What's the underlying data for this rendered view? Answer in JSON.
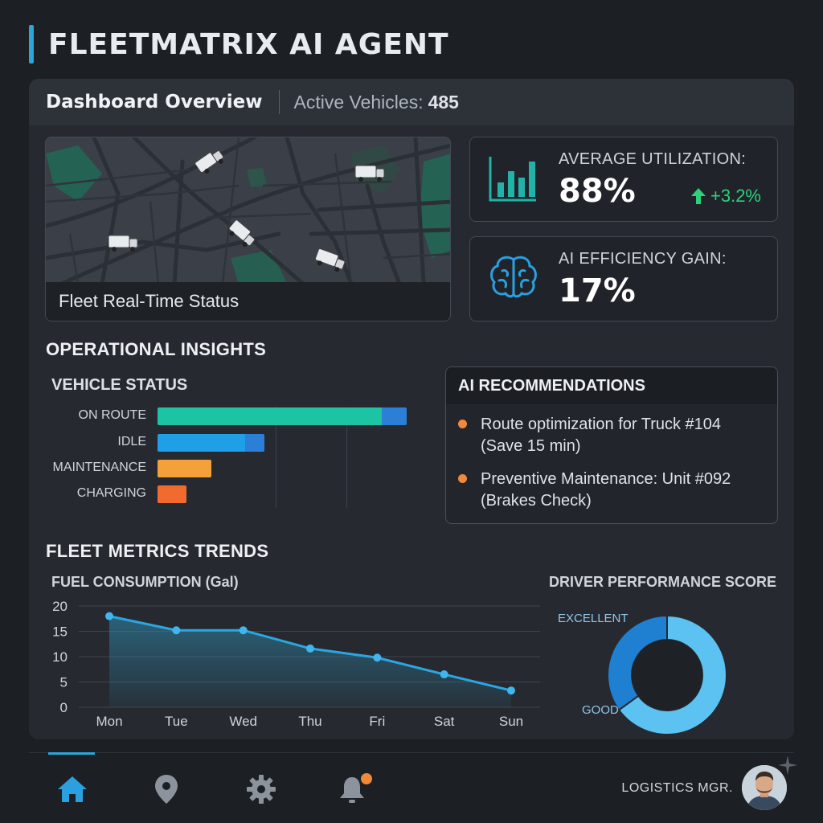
{
  "app": {
    "title": "FLEETMATRIX AI AGENT"
  },
  "dashboard": {
    "title": "Dashboard Overview",
    "active_label": "Active Vehicles:",
    "active_value": "485"
  },
  "map": {
    "caption": "Fleet Real-Time Status"
  },
  "kpis": {
    "utilization": {
      "label": "AVERAGE UTILIZATION:",
      "value": "88%",
      "delta": "+3.2%",
      "icon": "bar-chart-icon"
    },
    "efficiency": {
      "label": "AI EFFICIENCY GAIN:",
      "value": "17%",
      "icon": "brain-icon"
    }
  },
  "insights": {
    "title": "OPERATIONAL INSIGHTS"
  },
  "vehicle_status": {
    "title": "VEHICLE STATUS",
    "colors": {
      "on_route": "#1cc4a3",
      "idle": "#1e9fe6",
      "maintenance": "#f5a13b",
      "charging": "#f26b2e",
      "secondary": "#2b7fd6"
    },
    "chart_data": {
      "type": "bar",
      "categories": [
        "ON ROUTE",
        "IDLE",
        "MAINTENANCE",
        "CHARGING"
      ],
      "values": [
        310,
        133,
        67,
        36
      ]
    }
  },
  "recommendations": {
    "title": "AI RECOMMENDATIONS",
    "items": [
      {
        "line1": "Route optimization for Truck #104",
        "line2": "(Save 15 min)"
      },
      {
        "line1": "Preventive Maintenance: Unit #092",
        "line2": "(Brakes Check)"
      }
    ]
  },
  "trends": {
    "title": "FLEET METRICS TRENDS"
  },
  "fuel": {
    "title": "FUEL CONSUMPTION (Gal)",
    "chart_data": {
      "type": "area",
      "categories": [
        "Mon",
        "Tue",
        "Wed",
        "Thu",
        "Fri",
        "Sat",
        "Sun"
      ],
      "values": [
        18,
        15.2,
        15.2,
        11.6,
        9.8,
        6.5,
        3.3
      ],
      "ylim": [
        0,
        20
      ],
      "yticks": [
        0,
        5,
        10,
        15,
        20
      ],
      "grid": true
    }
  },
  "driver_performance": {
    "title": "DRIVER PERFORMANCE SCORE",
    "chart_data": {
      "type": "pie",
      "labels": [
        "EXCELLENT",
        "GOOD"
      ],
      "values": [
        35,
        65
      ]
    },
    "colors": [
      "#1f7fd1",
      "#5bc2f2"
    ]
  },
  "nav": {
    "items": [
      {
        "icon": "home-icon",
        "active": true
      },
      {
        "icon": "location-pin-icon"
      },
      {
        "icon": "gear-icon"
      },
      {
        "icon": "bell-icon"
      }
    ],
    "user_label": "LOGISTICS MGR."
  }
}
